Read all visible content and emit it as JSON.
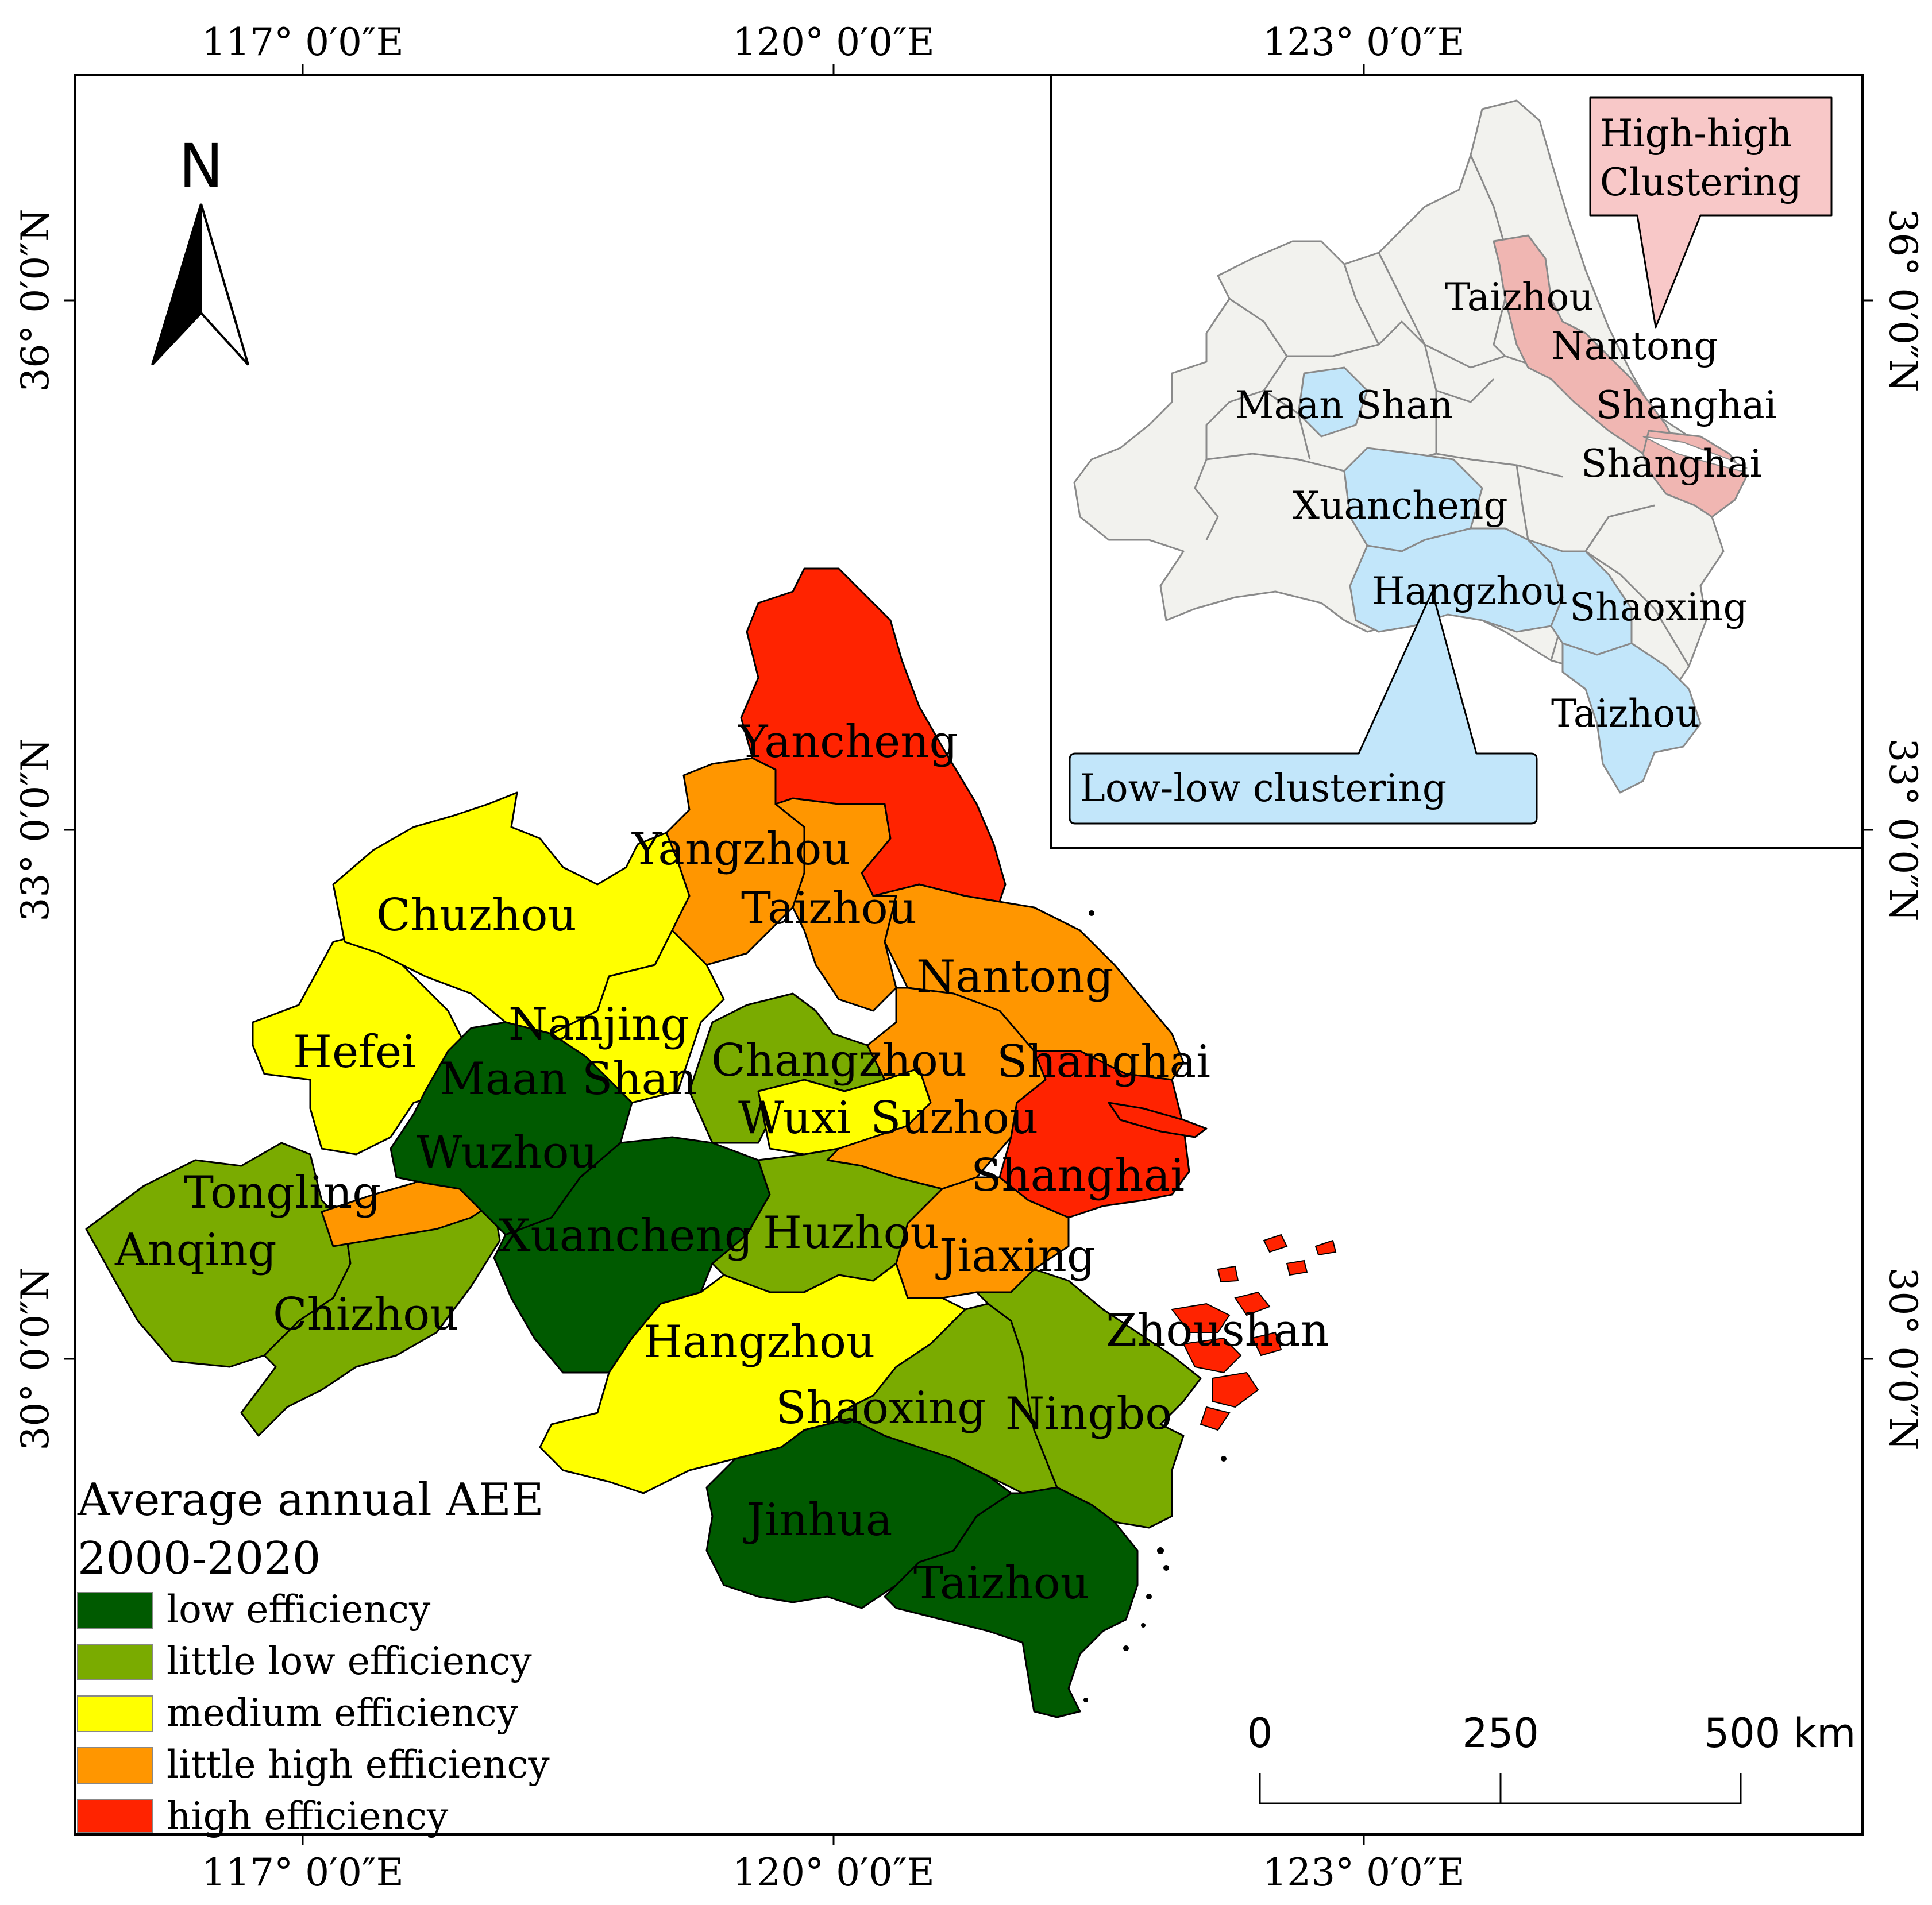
{
  "graticule": {
    "lon_labels": [
      "117° 0′0″E",
      "120° 0′0″E",
      "123° 0′0″E"
    ],
    "lat_labels": [
      "36° 0′0″N",
      "33° 0′0″N",
      "30° 0′0″N"
    ]
  },
  "north_arrow": {
    "label": "N"
  },
  "legend": {
    "title_line1": "Average annual AEE",
    "title_line2": "2000-2020",
    "items": [
      {
        "label": "low efficiency",
        "color": "#005a00"
      },
      {
        "label": "little low efficiency",
        "color": "#7aab00"
      },
      {
        "label": "medium efficiency",
        "color": "#ffff00"
      },
      {
        "label": "little high efficiency",
        "color": "#ff9600"
      },
      {
        "label": "high efficiency",
        "color": "#ff2300"
      }
    ]
  },
  "scale_bar": {
    "labels": [
      "0",
      "250",
      "500 km"
    ]
  },
  "cities": [
    {
      "label": "Yancheng",
      "class": "high efficiency",
      "color": "#ff2300"
    },
    {
      "label": "Yangzhou",
      "class": "little high efficiency",
      "color": "#ff9600"
    },
    {
      "label": "Taizhou",
      "class": "little high efficiency",
      "color": "#ff9600"
    },
    {
      "label": "Nantong",
      "class": "little high efficiency",
      "color": "#ff9600"
    },
    {
      "label": "Chuzhou",
      "class": "medium efficiency",
      "color": "#ffff00"
    },
    {
      "label": "Nanjing",
      "class": "medium efficiency",
      "color": "#ffff00"
    },
    {
      "label": "Hefei",
      "class": "medium efficiency",
      "color": "#ffff00"
    },
    {
      "label": "Maan Shan",
      "class": "low efficiency",
      "color": "#005a00"
    },
    {
      "label": "Changzhou",
      "class": "little low efficiency",
      "color": "#7aab00"
    },
    {
      "label": "Shanghai",
      "class": "high efficiency",
      "color": "#ff2300"
    },
    {
      "label": "Wuxi",
      "class": "medium efficiency",
      "color": "#ffff00"
    },
    {
      "label": "Suzhou",
      "class": "little high efficiency",
      "color": "#ff9600"
    },
    {
      "label": "Wuzhou",
      "class": "low efficiency",
      "color": "#005a00"
    },
    {
      "label": "Tongling",
      "class": "little high efficiency",
      "color": "#ff9600"
    },
    {
      "label": "Shanghai",
      "class": "high efficiency",
      "color": "#ff2300"
    },
    {
      "label": "Anqing",
      "class": "little low efficiency",
      "color": "#7aab00"
    },
    {
      "label": "Xuancheng",
      "class": "low efficiency",
      "color": "#005a00"
    },
    {
      "label": "Huzhou",
      "class": "little low efficiency",
      "color": "#7aab00"
    },
    {
      "label": "Jiaxing",
      "class": "little high efficiency",
      "color": "#ff9600"
    },
    {
      "label": "Chizhou",
      "class": "little low efficiency",
      "color": "#7aab00"
    },
    {
      "label": "Zhoushan",
      "class": "high efficiency",
      "color": "#ff2300"
    },
    {
      "label": "Hangzhou",
      "class": "medium efficiency",
      "color": "#ffff00"
    },
    {
      "label": "Shaoxing",
      "class": "little low efficiency",
      "color": "#7aab00"
    },
    {
      "label": "Ningbo",
      "class": "little low efficiency",
      "color": "#7aab00"
    },
    {
      "label": "Jinhua",
      "class": "low efficiency",
      "color": "#005a00"
    },
    {
      "label": "Taizhou",
      "class": "low efficiency",
      "color": "#005a00"
    }
  ],
  "inset": {
    "high_high_callout": {
      "line1": "High-high",
      "line2": "Clustering",
      "color": "#f8c8c8"
    },
    "low_low_callout": {
      "label": "Low-low clustering",
      "color": "#c2e6fa"
    },
    "base_color": "#f2f2ee",
    "labels": [
      "Taizhou",
      "Nantong",
      "Maan Shan",
      "Shanghai",
      "Shanghai",
      "Xuancheng",
      "Hangzhou",
      "Shaoxing",
      "Taizhou"
    ]
  }
}
